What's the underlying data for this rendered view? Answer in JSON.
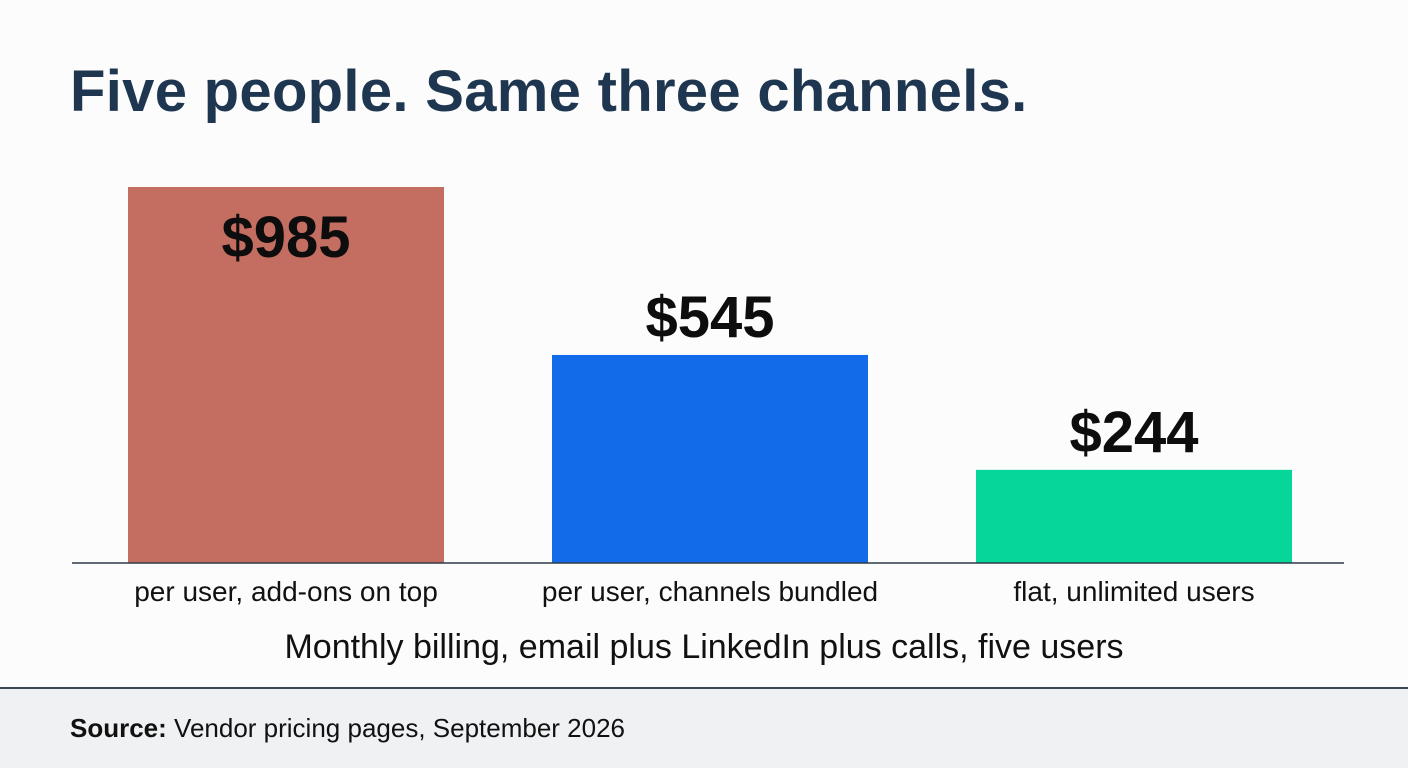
{
  "title": "Five people. Same three channels.",
  "chart_data": {
    "type": "bar",
    "categories": [
      "per user, add-ons on top",
      "per user, channels bundled",
      "flat, unlimited users"
    ],
    "values": [
      985,
      545,
      244
    ],
    "value_labels": [
      "$985",
      "$545",
      "$244"
    ],
    "colors": [
      "#c46e62",
      "#126be8",
      "#06d69a"
    ],
    "xlabel": "Monthly billing, email plus LinkedIn plus calls, five users",
    "ylabel": "",
    "ylim": [
      0,
      985
    ],
    "grid": false,
    "legend": "none"
  },
  "footer": {
    "source_label": "Source:",
    "source_text": " Vendor pricing pages, September 2026"
  }
}
